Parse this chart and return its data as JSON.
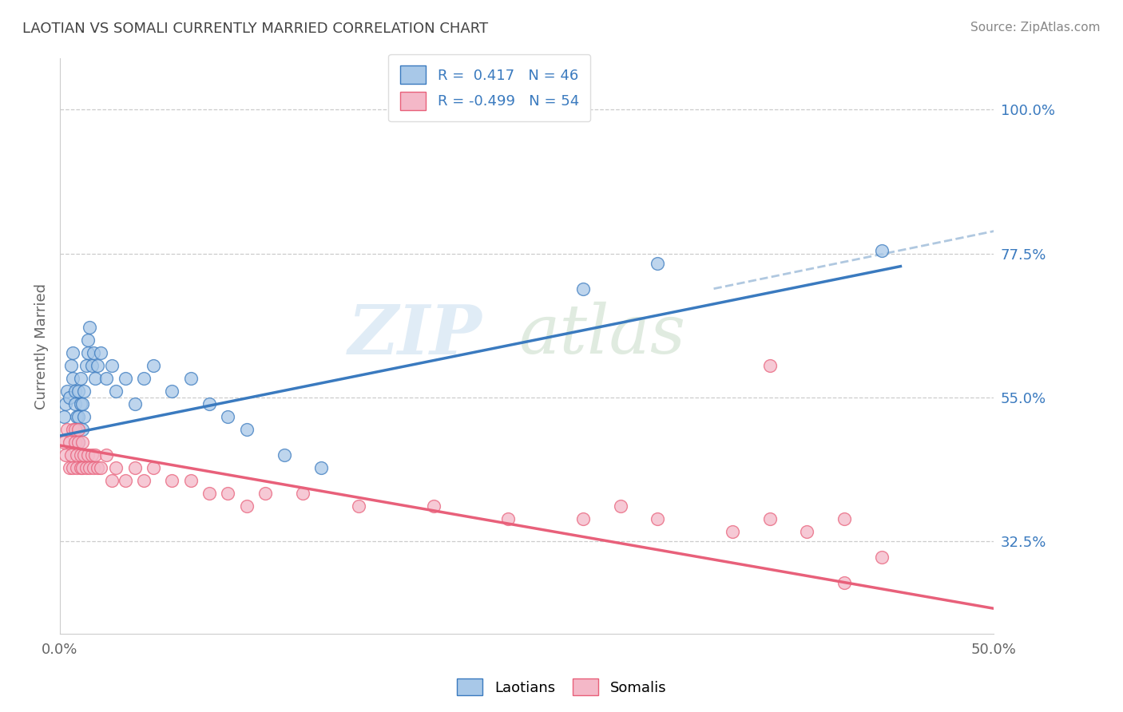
{
  "title": "LAOTIAN VS SOMALI CURRENTLY MARRIED CORRELATION CHART",
  "source_text": "Source: ZipAtlas.com",
  "ylabel": "Currently Married",
  "xlim": [
    0.0,
    0.5
  ],
  "ylim": [
    0.18,
    1.08
  ],
  "yticks": [
    0.325,
    0.55,
    0.775,
    1.0
  ],
  "ytick_labels": [
    "32.5%",
    "55.0%",
    "77.5%",
    "100.0%"
  ],
  "xtick_labels": [
    "0.0%",
    "50.0%"
  ],
  "legend_R1": "0.417",
  "legend_N1": "46",
  "legend_R2": "-0.499",
  "legend_N2": "54",
  "blue_color": "#a8c8e8",
  "pink_color": "#f4b8c8",
  "blue_line_color": "#3a7abf",
  "pink_line_color": "#e8607a",
  "dash_color": "#b0c8e0",
  "title_color": "#444444",
  "label_color": "#3a7abf",
  "background_color": "#ffffff",
  "blue_line_x0": 0.0,
  "blue_line_y0": 0.49,
  "blue_line_x1": 0.45,
  "blue_line_y1": 0.755,
  "pink_line_x0": 0.0,
  "pink_line_y0": 0.475,
  "pink_line_x1": 0.5,
  "pink_line_y1": 0.22,
  "dash_line_x0": 0.35,
  "dash_line_y0": 0.72,
  "dash_line_x1": 0.5,
  "dash_line_y1": 0.81,
  "laotian_x": [
    0.002,
    0.003,
    0.004,
    0.005,
    0.006,
    0.007,
    0.007,
    0.008,
    0.008,
    0.009,
    0.009,
    0.01,
    0.01,
    0.01,
    0.011,
    0.011,
    0.012,
    0.012,
    0.013,
    0.013,
    0.014,
    0.015,
    0.015,
    0.016,
    0.017,
    0.018,
    0.019,
    0.02,
    0.022,
    0.025,
    0.028,
    0.03,
    0.035,
    0.04,
    0.045,
    0.05,
    0.06,
    0.07,
    0.08,
    0.09,
    0.1,
    0.12,
    0.14,
    0.28,
    0.32,
    0.44
  ],
  "laotian_y": [
    0.52,
    0.54,
    0.56,
    0.55,
    0.6,
    0.58,
    0.62,
    0.54,
    0.56,
    0.5,
    0.52,
    0.48,
    0.52,
    0.56,
    0.54,
    0.58,
    0.5,
    0.54,
    0.52,
    0.56,
    0.6,
    0.62,
    0.64,
    0.66,
    0.6,
    0.62,
    0.58,
    0.6,
    0.62,
    0.58,
    0.6,
    0.56,
    0.58,
    0.54,
    0.58,
    0.6,
    0.56,
    0.58,
    0.54,
    0.52,
    0.5,
    0.46,
    0.44,
    0.72,
    0.76,
    0.78
  ],
  "somali_x": [
    0.002,
    0.003,
    0.004,
    0.005,
    0.005,
    0.006,
    0.007,
    0.007,
    0.008,
    0.008,
    0.009,
    0.009,
    0.01,
    0.01,
    0.011,
    0.011,
    0.012,
    0.012,
    0.013,
    0.014,
    0.015,
    0.016,
    0.017,
    0.018,
    0.019,
    0.02,
    0.022,
    0.025,
    0.028,
    0.03,
    0.035,
    0.04,
    0.045,
    0.05,
    0.06,
    0.07,
    0.08,
    0.09,
    0.1,
    0.11,
    0.13,
    0.16,
    0.2,
    0.24,
    0.28,
    0.32,
    0.36,
    0.38,
    0.4,
    0.42,
    0.44,
    0.3,
    0.38,
    0.42
  ],
  "somali_y": [
    0.48,
    0.46,
    0.5,
    0.44,
    0.48,
    0.46,
    0.5,
    0.44,
    0.48,
    0.5,
    0.44,
    0.46,
    0.48,
    0.5,
    0.44,
    0.46,
    0.48,
    0.44,
    0.46,
    0.44,
    0.46,
    0.44,
    0.46,
    0.44,
    0.46,
    0.44,
    0.44,
    0.46,
    0.42,
    0.44,
    0.42,
    0.44,
    0.42,
    0.44,
    0.42,
    0.42,
    0.4,
    0.4,
    0.38,
    0.4,
    0.4,
    0.38,
    0.38,
    0.36,
    0.36,
    0.36,
    0.34,
    0.36,
    0.34,
    0.36,
    0.3,
    0.38,
    0.6,
    0.26
  ]
}
